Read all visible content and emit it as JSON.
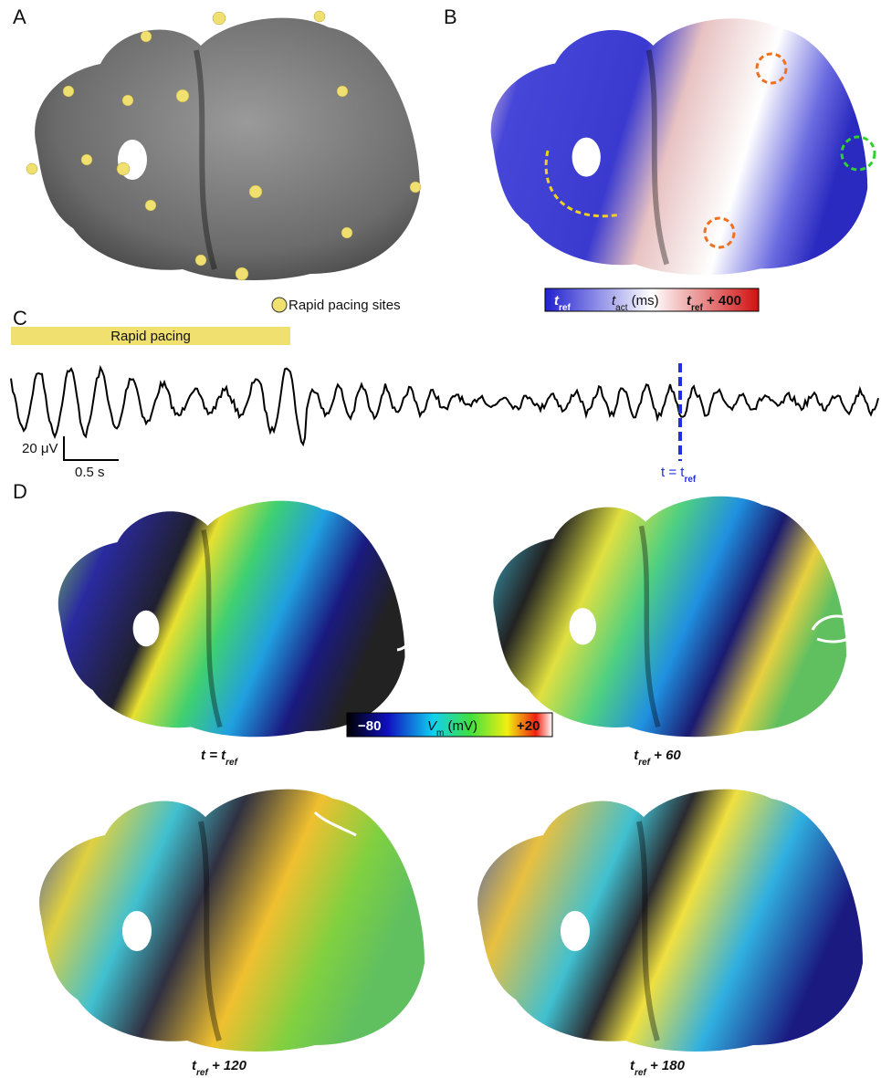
{
  "panels": {
    "a": {
      "label": "A",
      "legend": "Rapid pacing sites"
    },
    "b": {
      "label": "B",
      "colorbar": {
        "left": [
          "t",
          "ref"
        ],
        "middle": [
          "t",
          "act",
          " (ms)"
        ],
        "right": [
          "t",
          "ref",
          " + 400"
        ]
      }
    },
    "c": {
      "label": "C",
      "bar": "Rapid pacing",
      "scale_v": "20 μV",
      "scale_t": "0.5 s",
      "marker": [
        "t = t",
        "ref"
      ]
    },
    "d": {
      "label": "D",
      "colorbar": {
        "left": "−80",
        "middle": [
          "V",
          "m",
          " (mV)"
        ],
        "right": "+20"
      },
      "captions": [
        [
          "t = t",
          "ref"
        ],
        [
          "t",
          "ref",
          " + 60"
        ],
        [
          "t",
          "ref",
          " + 120"
        ],
        [
          "t",
          "ref",
          " + 180"
        ]
      ]
    }
  }
}
